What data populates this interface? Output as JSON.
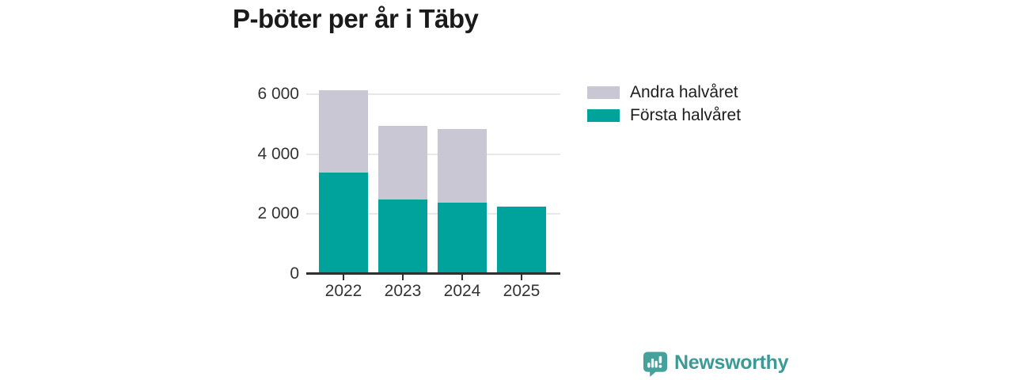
{
  "chart_data": {
    "type": "bar",
    "stacked": true,
    "title": "P-böter per år i Täby",
    "categories": [
      "2022",
      "2023",
      "2024",
      "2025"
    ],
    "series": [
      {
        "name": "Första halvåret",
        "color": "#00a39b",
        "values": [
          3380,
          2480,
          2370,
          2240
        ]
      },
      {
        "name": "Andra halvåret",
        "color": "#cac7d4",
        "values": [
          2740,
          2470,
          2460,
          0
        ]
      }
    ],
    "xlabel": "",
    "ylabel": "",
    "ylim": [
      0,
      6800
    ],
    "yticks": [
      {
        "value": 0,
        "label": "0"
      },
      {
        "value": 2000,
        "label": "2 000"
      },
      {
        "value": 4000,
        "label": "4 000"
      },
      {
        "value": 6000,
        "label": "6 000"
      }
    ],
    "grid": "horizontal",
    "legend": {
      "position": "top-right",
      "entries": [
        {
          "label": "Andra halvåret",
          "color": "#cac7d4"
        },
        {
          "label": "Första halvåret",
          "color": "#00a39b"
        }
      ]
    }
  },
  "branding": {
    "logo_text": "Newsworthy",
    "logo_color": "#3b9a95",
    "icon_name": "newsworthy-speech-bubble-chart-icon"
  },
  "colors": {
    "axis": "#2f2f2f",
    "grid": "#e8e8e8",
    "tick_label": "#333333",
    "title": "#1a1a1a",
    "background": "#ffffff"
  }
}
